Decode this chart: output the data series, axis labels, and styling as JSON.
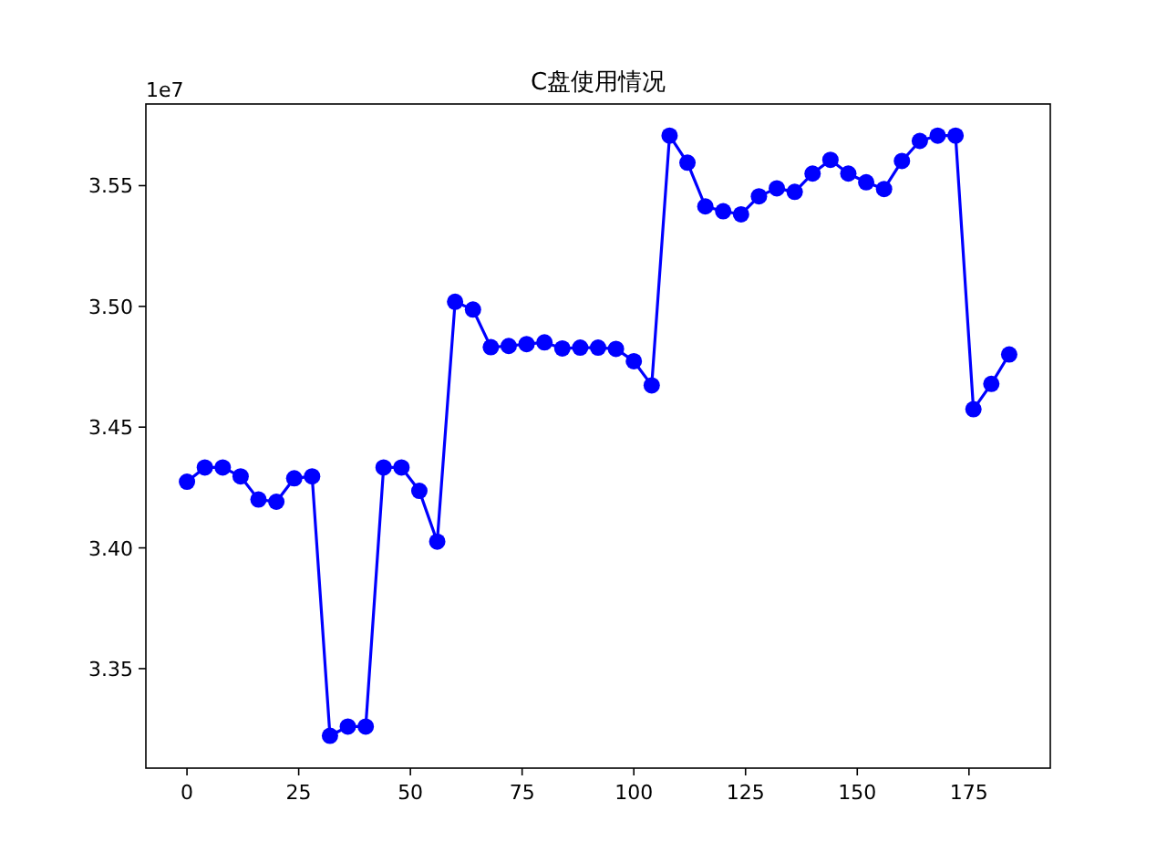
{
  "chart_data": {
    "type": "line",
    "title": "C盘使用情况",
    "x": [
      0,
      4,
      8,
      12,
      16,
      20,
      24,
      28,
      32,
      36,
      40,
      44,
      48,
      52,
      56,
      60,
      64,
      68,
      72,
      76,
      80,
      84,
      88,
      92,
      96,
      100,
      104,
      108,
      112,
      116,
      120,
      124,
      128,
      132,
      136,
      140,
      144,
      148,
      152,
      156,
      160,
      164,
      168,
      172,
      176,
      180,
      184
    ],
    "series": [
      {
        "color": "#0000ff",
        "values": [
          3.4274,
          3.4333,
          3.4333,
          3.4296,
          3.42,
          3.4191,
          3.4288,
          3.4296,
          3.3222,
          3.326,
          3.326,
          3.4333,
          3.4333,
          3.4236,
          3.4026,
          3.5019,
          3.4987,
          3.4831,
          3.4836,
          3.4844,
          3.4851,
          3.4826,
          3.4829,
          3.4829,
          3.4824,
          3.4773,
          3.4673,
          3.5707,
          3.5595,
          3.5414,
          3.5394,
          3.5381,
          3.5456,
          3.5489,
          3.5474,
          3.555,
          3.5607,
          3.555,
          3.5514,
          3.5486,
          3.5602,
          3.5685,
          3.5707,
          3.5707,
          3.4574,
          3.4679,
          3.4801
        ]
      }
    ],
    "xlim": [
      -9.2,
      193.2
    ],
    "ylim": [
      3.3088,
      3.5838
    ],
    "xticks": [
      0,
      25,
      50,
      75,
      100,
      125,
      150,
      175
    ],
    "yticks": [
      {
        "value": 3.35,
        "label": "3.35"
      },
      {
        "value": 3.4,
        "label": "3.40"
      },
      {
        "value": 3.45,
        "label": "3.45"
      },
      {
        "value": 3.5,
        "label": "3.50"
      },
      {
        "value": 3.55,
        "label": "3.55"
      }
    ],
    "annotations": [
      "1e7"
    ],
    "marker": "circle",
    "line_style": "solid"
  }
}
